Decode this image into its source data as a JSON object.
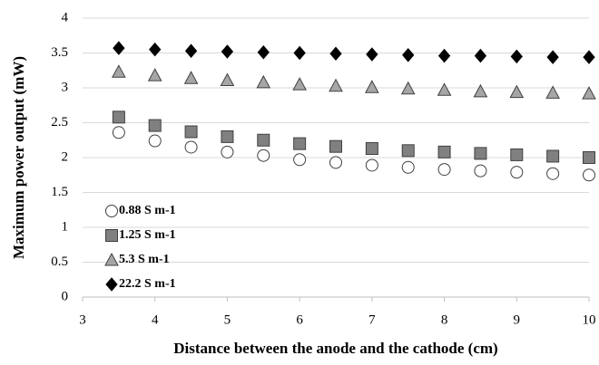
{
  "chart_data": {
    "type": "scatter",
    "xlabel": "Distance between the anode and the cathode (cm)",
    "ylabel": "Maximum power output (mW)",
    "x": [
      3.5,
      4,
      4.5,
      5,
      5.5,
      6,
      6.5,
      7,
      7.5,
      8,
      8.5,
      9,
      9.5,
      10
    ],
    "series": [
      {
        "name": "0.88 S m-1",
        "marker": "circle",
        "color": "#ffffff",
        "values": [
          2.36,
          2.24,
          2.15,
          2.08,
          2.03,
          1.97,
          1.93,
          1.89,
          1.86,
          1.83,
          1.81,
          1.79,
          1.77,
          1.75
        ]
      },
      {
        "name": "1.25 S m-1",
        "marker": "square",
        "color": "#808080",
        "values": [
          2.58,
          2.46,
          2.37,
          2.3,
          2.25,
          2.2,
          2.16,
          2.13,
          2.1,
          2.08,
          2.06,
          2.04,
          2.02,
          2.0
        ]
      },
      {
        "name": "5.3 S m-1",
        "marker": "triangle",
        "color": "#a6a6a6",
        "values": [
          3.23,
          3.18,
          3.14,
          3.11,
          3.08,
          3.05,
          3.03,
          3.01,
          2.99,
          2.97,
          2.95,
          2.94,
          2.93,
          2.92
        ]
      },
      {
        "name": "22.2 S m-1",
        "marker": "diamond",
        "color": "#000000",
        "values": [
          3.57,
          3.55,
          3.53,
          3.52,
          3.51,
          3.5,
          3.49,
          3.48,
          3.47,
          3.46,
          3.46,
          3.45,
          3.44,
          3.44
        ]
      }
    ],
    "xlim": [
      3,
      10
    ],
    "xticks": [
      3,
      4,
      5,
      6,
      7,
      8,
      9,
      10
    ],
    "ylim": [
      0,
      4
    ],
    "yticks": [
      0,
      0.5,
      1,
      1.5,
      2,
      2.5,
      3,
      3.5,
      4
    ],
    "grid": true,
    "legend": "lower left"
  }
}
